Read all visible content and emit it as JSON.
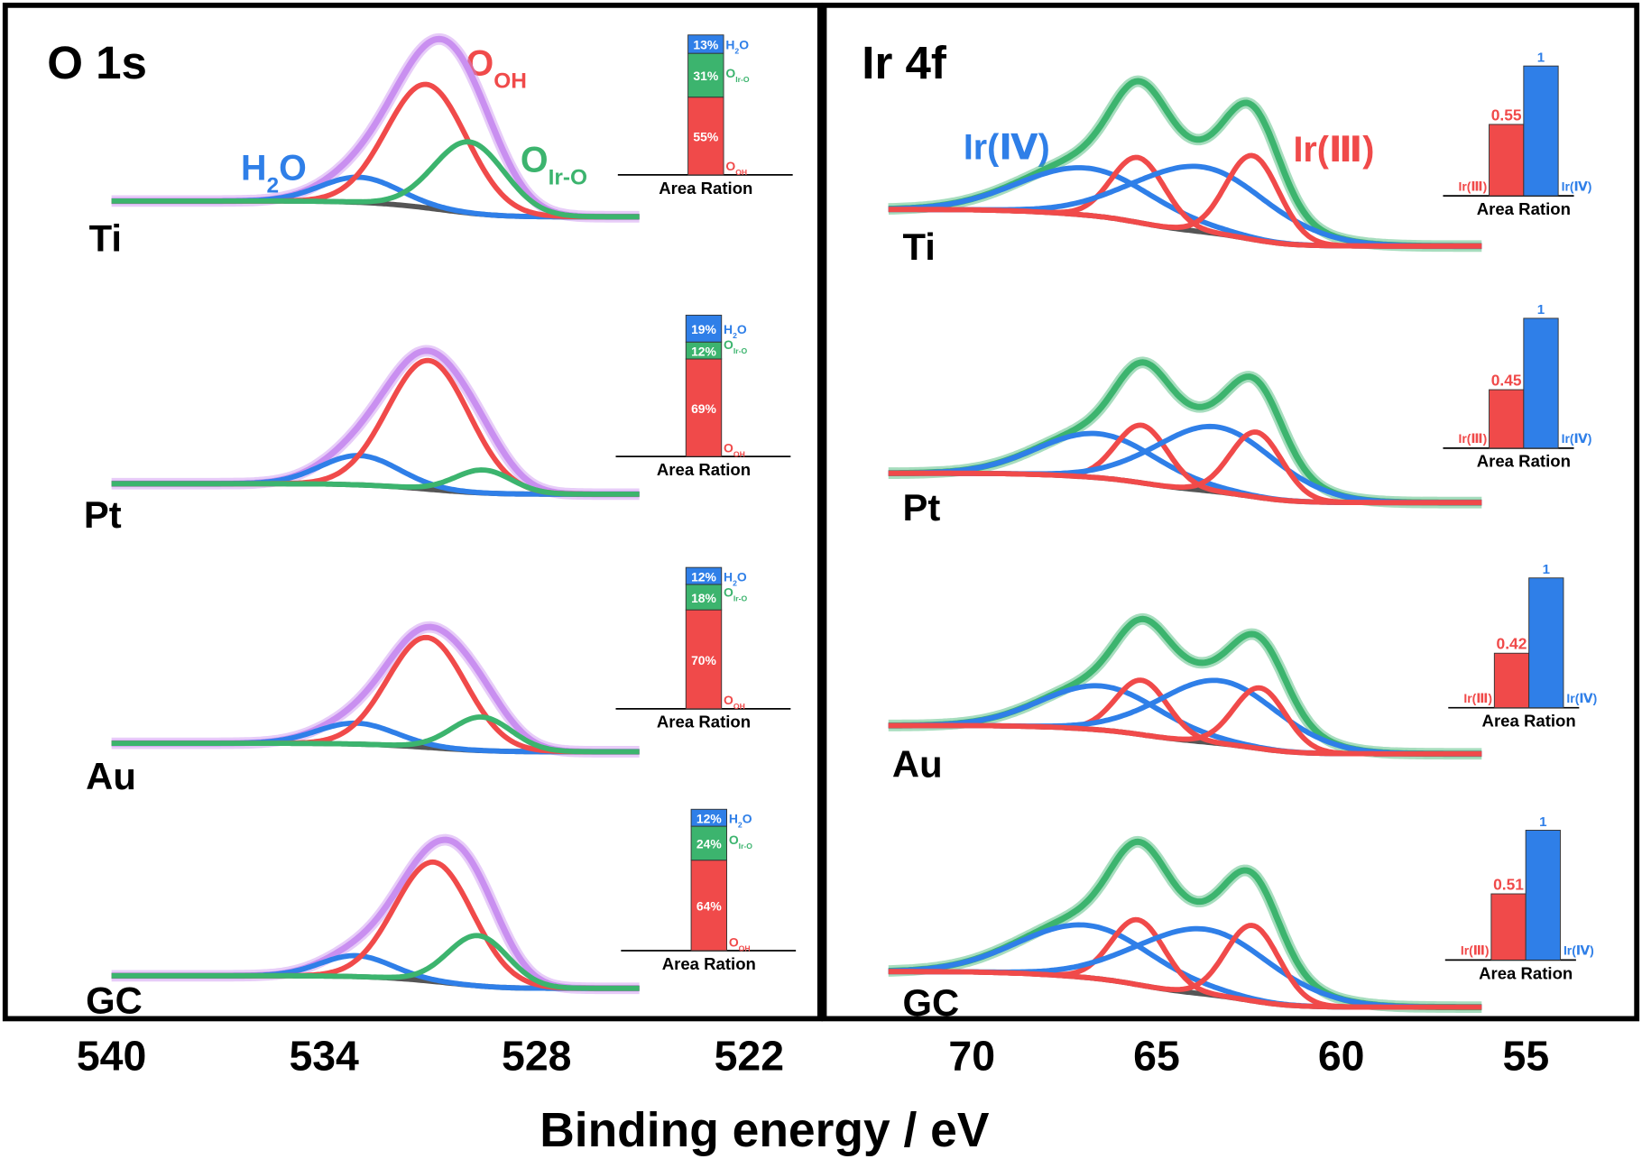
{
  "xlabel": "Binding energy / eV",
  "chart_data": [
    {
      "type": "spectra",
      "title": "O 1s",
      "xlim": [
        543,
        520
      ],
      "xticks": [
        540,
        534,
        528,
        522
      ],
      "ylim": [
        0,
        1.6
      ],
      "range": [
        540,
        525.1
      ],
      "envelope_color": "#c98ff0",
      "baseline_color": "#555555",
      "components": [
        {
          "color": "#2f7fe8"
        },
        {
          "color": "#f04a4a"
        },
        {
          "color": "#3cb46e"
        }
      ],
      "peak_labels": [
        {
          "color": "#2f7fe8",
          "parts": [
            {
              "text": "H"
            },
            {
              "text": "2",
              "sub": true
            },
            {
              "text": "O"
            }
          ]
        },
        {
          "color": "#f04a4a",
          "parts": [
            {
              "text": "O"
            },
            {
              "text": "OH",
              "sub": true
            }
          ]
        },
        {
          "color": "#3cb46e",
          "parts": [
            {
              "text": "O"
            },
            {
              "text": "Ir-O",
              "sub": true
            }
          ]
        }
      ],
      "inset_xlabel": "Area  Ration",
      "inset_ylim": [
        0,
        100
      ],
      "inset_colors": [
        "#f04a4a",
        "#3cb46e",
        "#2f7fe8"
      ],
      "inset_labels": [
        [
          {
            "text": "O"
          },
          {
            "text": "OH",
            "sub": true
          }
        ],
        [
          {
            "text": "O"
          },
          {
            "text": "Ir-O",
            "sub": true
          }
        ],
        [
          {
            "text": "H"
          },
          {
            "text": "2",
            "sub": true
          },
          {
            "text": "O"
          }
        ]
      ],
      "samples": [
        {
          "label": "Ti",
          "baseline": [
            0.15,
            0
          ],
          "peaks": [
            {
              "center": 533.0,
              "height": 0.24,
              "sigma": 1.1
            },
            {
              "center": 531.1,
              "height": 1.18,
              "sigma": 1.13
            },
            {
              "center": 529.9,
              "height": 0.68,
              "sigma": 1.0
            }
          ],
          "inset": {
            "values": [
              55,
              31,
              13
            ],
            "value_labels": [
              "55%",
              "31%",
              "13%"
            ]
          }
        },
        {
          "label": "Pt",
          "baseline": [
            0.1,
            0
          ],
          "peaks": [
            {
              "center": 533.0,
              "height": 0.28,
              "sigma": 1.1
            },
            {
              "center": 531.05,
              "height": 1.23,
              "sigma": 1.15
            },
            {
              "center": 529.5,
              "height": 0.22,
              "sigma": 0.8
            }
          ],
          "inset": {
            "values": [
              69,
              12,
              19
            ],
            "value_labels": [
              "69%",
              "12%",
              "19%"
            ]
          }
        },
        {
          "label": "Au",
          "baseline": [
            0.08,
            0
          ],
          "peaks": [
            {
              "center": 533.1,
              "height": 0.2,
              "sigma": 1.1
            },
            {
              "center": 531.1,
              "height": 1.05,
              "sigma": 1.1
            },
            {
              "center": 529.55,
              "height": 0.32,
              "sigma": 0.85
            }
          ],
          "inset": {
            "values": [
              70,
              18,
              12
            ],
            "value_labels": [
              "70%",
              "18%",
              "12%"
            ]
          }
        },
        {
          "label": "GC",
          "baseline": [
            0.12,
            0
          ],
          "peaks": [
            {
              "center": 533.1,
              "height": 0.2,
              "sigma": 1.0
            },
            {
              "center": 530.9,
              "height": 1.14,
              "sigma": 1.1
            },
            {
              "center": 529.65,
              "height": 0.48,
              "sigma": 0.85
            }
          ],
          "inset": {
            "values": [
              64,
              24,
              12
            ],
            "value_labels": [
              "64%",
              "24%",
              "12%"
            ]
          }
        }
      ]
    },
    {
      "type": "spectra",
      "title": "Ir 4f",
      "xlim": [
        74,
        52
      ],
      "xticks": [
        70,
        65,
        60,
        55
      ],
      "ylim": [
        0,
        1.6
      ],
      "range": [
        72.26,
        56.2
      ],
      "envelope_color": "#3cb46e",
      "baseline_color": "#555555",
      "components": [
        {
          "color": "#2f7fe8"
        },
        {
          "color": "#f04a4a"
        },
        {
          "color": "#2f7fe8"
        },
        {
          "color": "#f04a4a"
        }
      ],
      "peak_labels": [
        {
          "color": "#2f7fe8",
          "parts": [
            {
              "text": "Ir(Ⅳ)"
            }
          ]
        },
        {
          "color": "#f04a4a",
          "parts": [
            {
              "text": "Ir(Ⅲ)"
            }
          ]
        }
      ],
      "inset_xlabel": "Area  Ration",
      "inset_ylim": [
        0,
        1
      ],
      "inset_colors": [
        "#f04a4a",
        "#2f7fe8"
      ],
      "inset_labels": [
        [
          {
            "text": "Ir(Ⅲ)"
          }
        ],
        [
          {
            "text": "Ir(Ⅳ)"
          }
        ]
      ],
      "samples": [
        {
          "label": "Ti",
          "baseline": [
            0.35,
            0
          ],
          "peaks": [
            {
              "center": 66.9,
              "height": 0.45,
              "sigma": 1.8
            },
            {
              "center": 65.5,
              "height": 0.62,
              "sigma": 0.72
            },
            {
              "center": 63.8,
              "height": 0.62,
              "sigma": 1.8
            },
            {
              "center": 62.4,
              "height": 0.8,
              "sigma": 0.72
            }
          ],
          "inset": {
            "values": [
              0.55,
              1
            ]
          }
        },
        {
          "label": "Pt",
          "baseline": [
            0.28,
            0
          ],
          "peaks": [
            {
              "center": 66.6,
              "height": 0.42,
              "sigma": 1.6
            },
            {
              "center": 65.4,
              "height": 0.55,
              "sigma": 0.7
            },
            {
              "center": 63.4,
              "height": 0.62,
              "sigma": 1.6
            },
            {
              "center": 62.3,
              "height": 0.62,
              "sigma": 0.7
            }
          ],
          "inset": {
            "values": [
              0.45,
              1
            ]
          }
        },
        {
          "label": "Au",
          "baseline": [
            0.27,
            0
          ],
          "peaks": [
            {
              "center": 66.5,
              "height": 0.42,
              "sigma": 1.6
            },
            {
              "center": 65.4,
              "height": 0.52,
              "sigma": 0.7
            },
            {
              "center": 63.3,
              "height": 0.6,
              "sigma": 1.6
            },
            {
              "center": 62.2,
              "height": 0.58,
              "sigma": 0.7
            }
          ],
          "inset": {
            "values": [
              0.42,
              1
            ]
          }
        },
        {
          "label": "GC",
          "baseline": [
            0.34,
            0
          ],
          "peaks": [
            {
              "center": 66.9,
              "height": 0.5,
              "sigma": 1.8
            },
            {
              "center": 65.5,
              "height": 0.62,
              "sigma": 0.72
            },
            {
              "center": 63.7,
              "height": 0.62,
              "sigma": 1.8
            },
            {
              "center": 62.4,
              "height": 0.72,
              "sigma": 0.72
            }
          ],
          "inset": {
            "values": [
              0.51,
              1
            ]
          }
        }
      ]
    }
  ]
}
